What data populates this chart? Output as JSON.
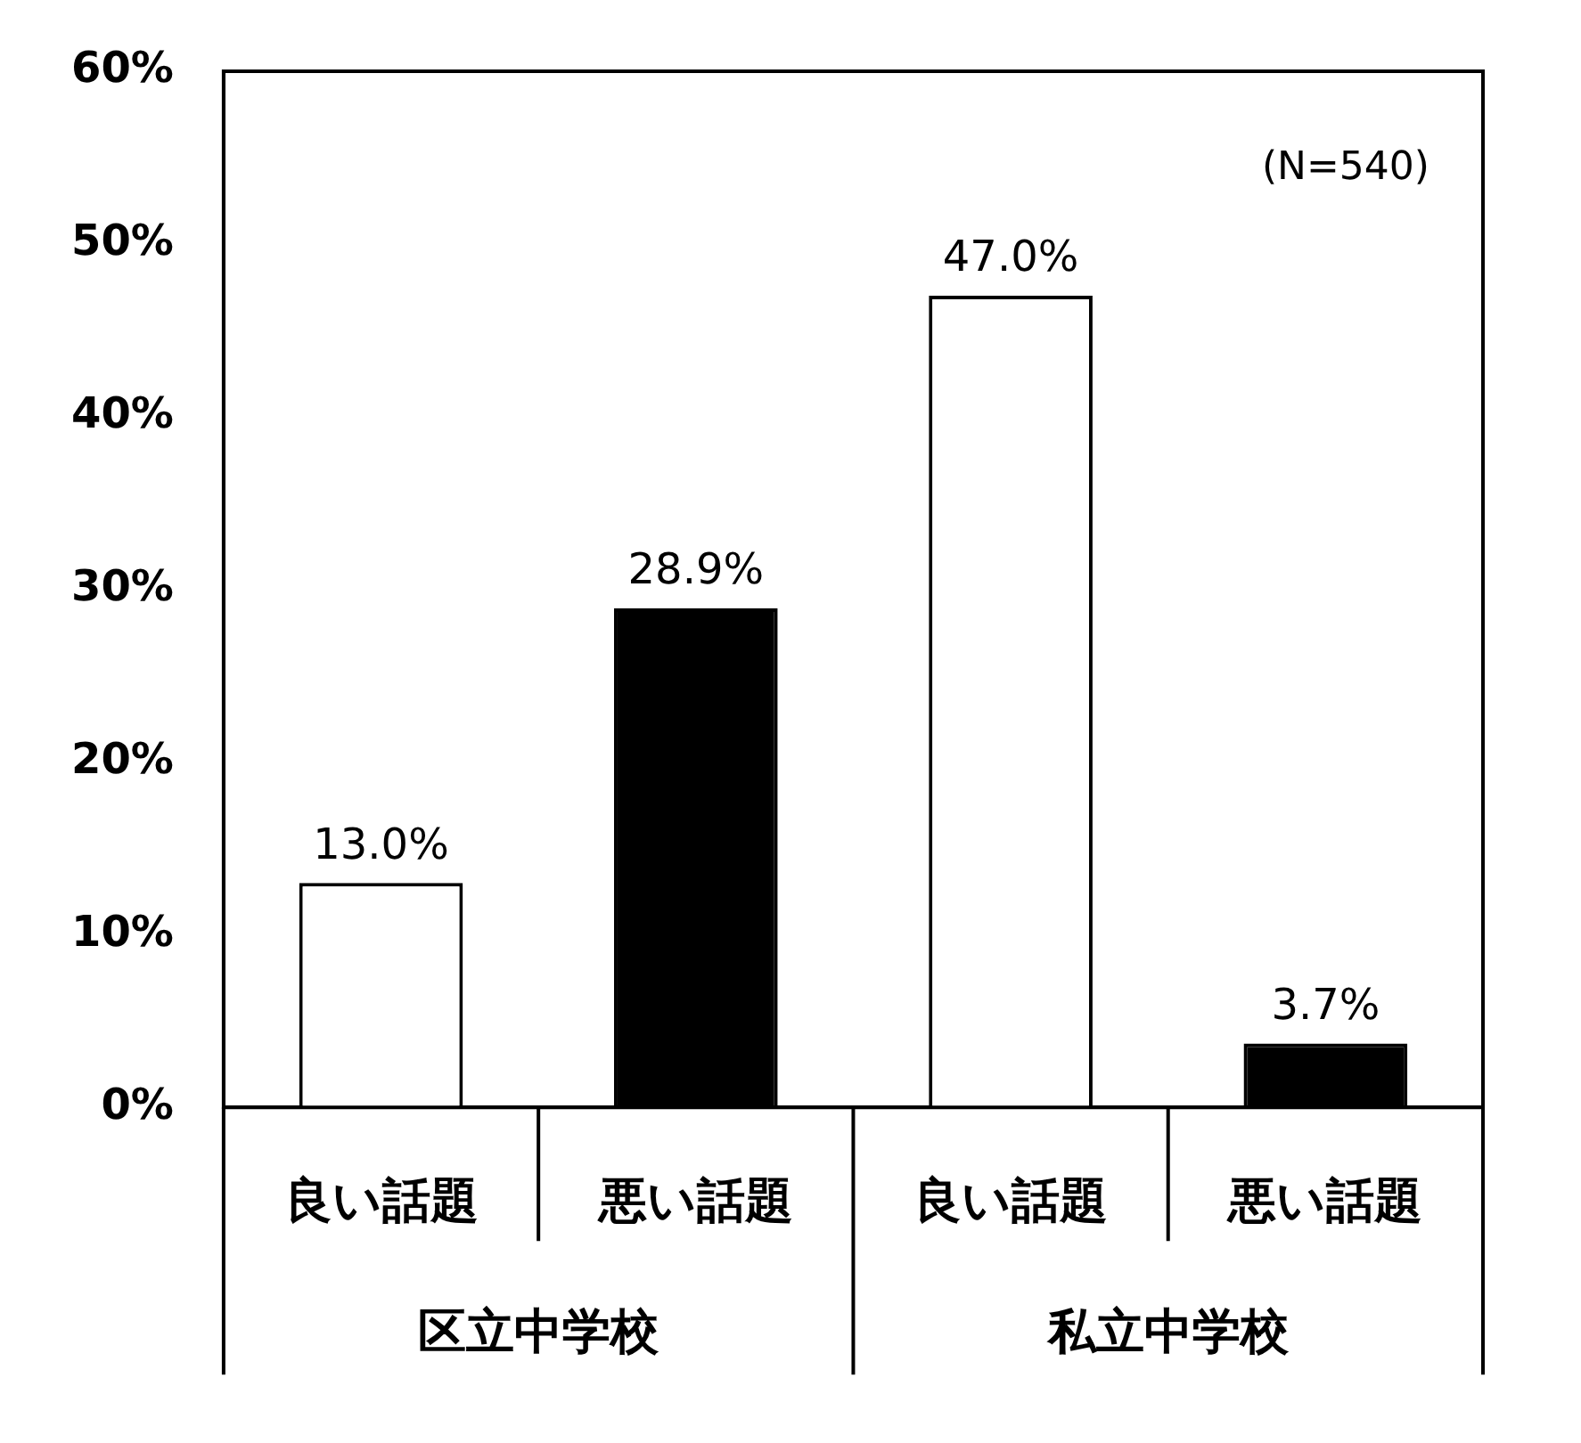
{
  "chart_data": {
    "type": "bar",
    "categories": [
      "良い話題",
      "悪い話題",
      "良い話題",
      "悪い話題"
    ],
    "values": [
      13.0,
      28.9,
      47.0,
      3.7
    ],
    "colors": [
      "#ffffff",
      "#000000",
      "#ffffff",
      "#000000"
    ],
    "value_labels": [
      "13.0%",
      "28.9%",
      "47.0%",
      "3.7%"
    ],
    "ylim": [
      0,
      60
    ],
    "yticks": [
      {
        "value": 0,
        "label": "0%"
      },
      {
        "value": 10,
        "label": "10%"
      },
      {
        "value": 20,
        "label": "20%"
      },
      {
        "value": 30,
        "label": "30%"
      },
      {
        "value": 40,
        "label": "40%"
      },
      {
        "value": 50,
        "label": "50%"
      },
      {
        "value": 60,
        "label": "60%"
      }
    ],
    "grid": false,
    "legend": false,
    "annotations": [
      "(N=540)",
      "区立中学校",
      "私立中学校"
    ]
  }
}
